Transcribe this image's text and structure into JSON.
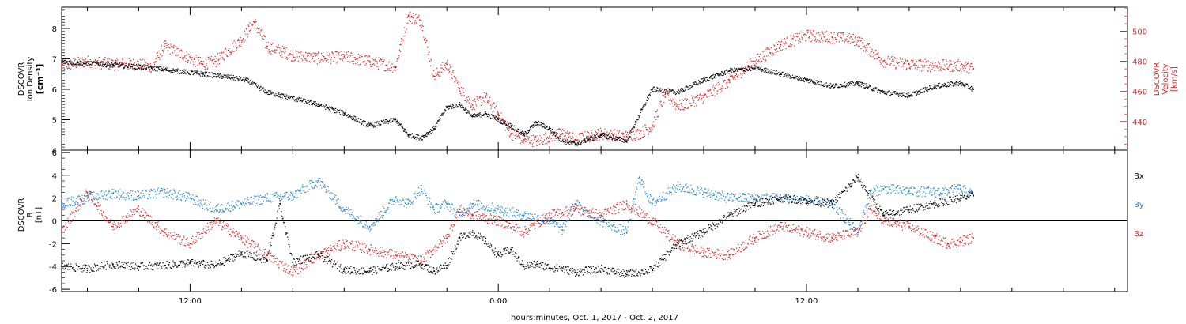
{
  "colors": {
    "black": "#000000",
    "blue": "#1f7fd0",
    "red": "#e01e1e"
  },
  "chart_data": [
    {
      "type": "scatter",
      "panel": "top",
      "ylabel_lines": [
        "DSCOVR",
        "Ion Density",
        "[cm⁻³]"
      ],
      "y2label_lines": [
        "DSCOVR",
        "Velocity",
        "[km/s]"
      ],
      "ylim": [
        4,
        8.7
      ],
      "y_ticks": [
        4,
        5,
        6,
        7,
        8
      ],
      "y2lim": [
        421,
        516
      ],
      "y2_ticks": [
        440,
        460,
        480,
        500
      ],
      "series": [
        {
          "axis": "left",
          "color": "black",
          "x": [
            7.0,
            9.0,
            10.5,
            11.5,
            12.5,
            13.5,
            14.2,
            15.0,
            16.0,
            17.0,
            18.0,
            19.0,
            20.0,
            20.5,
            21.0,
            21.5,
            22.0,
            22.5,
            23.0,
            23.5,
            24.0,
            24.5,
            25.0,
            25.5,
            26.0,
            26.5,
            27.0,
            28.0,
            29.0,
            30.0,
            31.0,
            32.0,
            33.0,
            34.0,
            35.0,
            36.0,
            37.0,
            38.0,
            39.0,
            40.0,
            41.0,
            42.0,
            42.5
          ],
          "values": [
            6.9,
            6.8,
            6.7,
            6.6,
            6.5,
            6.4,
            6.3,
            5.9,
            5.7,
            5.5,
            5.2,
            4.8,
            5.0,
            4.5,
            4.4,
            4.7,
            5.4,
            5.5,
            5.1,
            5.2,
            5.0,
            4.8,
            4.5,
            4.9,
            4.7,
            4.3,
            4.2,
            4.5,
            4.3,
            6.0,
            5.9,
            6.3,
            6.6,
            6.7,
            6.5,
            6.3,
            6.1,
            6.2,
            5.9,
            5.8,
            6.1,
            6.2,
            6.0
          ]
        },
        {
          "axis": "right",
          "color": "red",
          "x": [
            7.0,
            8.0,
            9.0,
            10.0,
            10.5,
            11.0,
            12.5,
            13.0,
            14.0,
            14.5,
            15.0,
            16.0,
            17.0,
            18.0,
            19.0,
            20.0,
            20.5,
            21.0,
            21.5,
            22.0,
            22.5,
            23.0,
            23.5,
            24.0,
            24.5,
            25.0,
            25.5,
            26.0,
            26.5,
            27.0,
            27.5,
            28.0,
            28.5,
            29.0,
            29.5,
            30.0,
            30.5,
            31.0,
            32.0,
            33.0,
            34.0,
            35.0,
            36.0,
            37.0,
            38.0,
            39.0,
            40.0,
            41.0,
            42.0,
            42.5
          ],
          "values": [
            477,
            480,
            478,
            478,
            476,
            490,
            478,
            480,
            494,
            506,
            490,
            484,
            482,
            483,
            480,
            476,
            510,
            507,
            470,
            478,
            462,
            451,
            456,
            445,
            432,
            428,
            427,
            430,
            432,
            428,
            430,
            432,
            431,
            430,
            432,
            437,
            458,
            450,
            456,
            467,
            480,
            491,
            497,
            496,
            494,
            480,
            478,
            477,
            477,
            475
          ]
        }
      ]
    },
    {
      "type": "scatter",
      "panel": "bottom",
      "ylabel_lines": [
        "DSCOVR",
        "B",
        "[nT]"
      ],
      "ylim": [
        -6.2,
        6.2
      ],
      "y_ticks": [
        -6,
        -4,
        -2,
        0,
        2,
        4,
        6
      ],
      "zero_line": true,
      "legend": [
        "Bx",
        "By",
        "Bz"
      ],
      "series": [
        {
          "name": "Bx",
          "color": "black",
          "x": [
            7.0,
            8.0,
            9.0,
            10.0,
            11.0,
            12.0,
            13.0,
            14.0,
            15.0,
            15.5,
            16.0,
            17.0,
            18.0,
            19.0,
            20.0,
            21.0,
            21.5,
            22.0,
            22.5,
            23.0,
            23.5,
            24.0,
            24.5,
            25.0,
            25.5,
            26.0,
            26.5,
            27.0,
            28.0,
            29.0,
            30.0,
            31.0,
            32.0,
            33.0,
            34.0,
            35.0,
            36.0,
            37.0,
            38.0,
            39.0,
            40.0,
            41.0,
            42.0,
            42.5
          ],
          "values": [
            -4.0,
            -4.2,
            -3.8,
            -4.0,
            -3.9,
            -3.7,
            -3.9,
            -2.8,
            -3.5,
            1.5,
            -3.6,
            -3.0,
            -4.3,
            -4.4,
            -4.0,
            -3.8,
            -4.4,
            -3.9,
            -1.5,
            -1.0,
            -1.8,
            -3.0,
            -2.5,
            -4.0,
            -3.8,
            -4.1,
            -4.2,
            -4.5,
            -4.2,
            -4.7,
            -4.3,
            -2.0,
            -1.0,
            0.5,
            1.5,
            2.0,
            1.8,
            1.5,
            3.8,
            0.5,
            1.0,
            1.5,
            2.0,
            2.2
          ]
        },
        {
          "name": "By",
          "color": "blue",
          "x": [
            7.0,
            8.0,
            9.0,
            10.0,
            11.0,
            12.0,
            13.0,
            14.0,
            15.0,
            16.0,
            17.0,
            18.0,
            19.0,
            20.0,
            20.5,
            21.0,
            21.5,
            22.0,
            22.5,
            23.0,
            24.0,
            25.0,
            26.0,
            26.5,
            27.0,
            28.0,
            29.0,
            29.5,
            30.0,
            31.0,
            32.0,
            33.0,
            34.0,
            35.0,
            36.0,
            37.0,
            38.0,
            38.5,
            39.0,
            40.0,
            41.0,
            42.0,
            42.5
          ],
          "values": [
            1.5,
            2.0,
            2.4,
            2.2,
            2.5,
            2.0,
            1.0,
            1.5,
            2.0,
            2.2,
            3.5,
            1.0,
            -0.5,
            2.0,
            1.5,
            2.8,
            1.0,
            1.5,
            0.5,
            1.5,
            1.0,
            0.5,
            0.0,
            -0.8,
            1.5,
            0.0,
            -1.0,
            3.8,
            1.5,
            3.0,
            2.5,
            2.0,
            2.0,
            2.0,
            1.8,
            1.5,
            -1.0,
            2.5,
            2.8,
            2.6,
            2.5,
            2.8,
            2.3
          ]
        },
        {
          "name": "Bz",
          "color": "red",
          "x": [
            7.0,
            8.0,
            9.0,
            10.0,
            11.0,
            12.0,
            13.0,
            14.0,
            15.0,
            16.0,
            17.0,
            18.0,
            19.0,
            20.0,
            21.0,
            22.0,
            22.5,
            23.0,
            24.0,
            25.0,
            26.0,
            27.0,
            28.0,
            29.0,
            30.0,
            31.0,
            32.0,
            33.0,
            34.0,
            35.0,
            36.0,
            37.0,
            38.0,
            38.5,
            39.0,
            40.0,
            41.0,
            41.5,
            42.0,
            42.5
          ],
          "values": [
            -1.0,
            2.5,
            -0.5,
            1.0,
            -1.0,
            -2.0,
            0.0,
            -1.5,
            -3.0,
            -4.5,
            -3.0,
            -2.0,
            -2.5,
            -3.0,
            -3.5,
            -1.5,
            1.0,
            0.5,
            0.0,
            -1.0,
            0.5,
            1.0,
            0.5,
            1.5,
            0.0,
            -2.0,
            -2.8,
            -3.0,
            -1.5,
            -0.5,
            -1.0,
            -1.5,
            -1.0,
            1.0,
            0.0,
            -0.5,
            -1.5,
            -2.0,
            -1.8,
            -1.5
          ]
        }
      ]
    }
  ],
  "x_axis": {
    "range_hours": [
      7.0,
      48.5
    ],
    "major_ticks": [
      12,
      24,
      36
    ],
    "tick_labels": [
      "12:00",
      "0:00",
      "12:00"
    ],
    "minor_tick_hours": 2,
    "xlabel": "hours:minutes, Oct.  1, 2017 - Oct.  2, 2017"
  }
}
